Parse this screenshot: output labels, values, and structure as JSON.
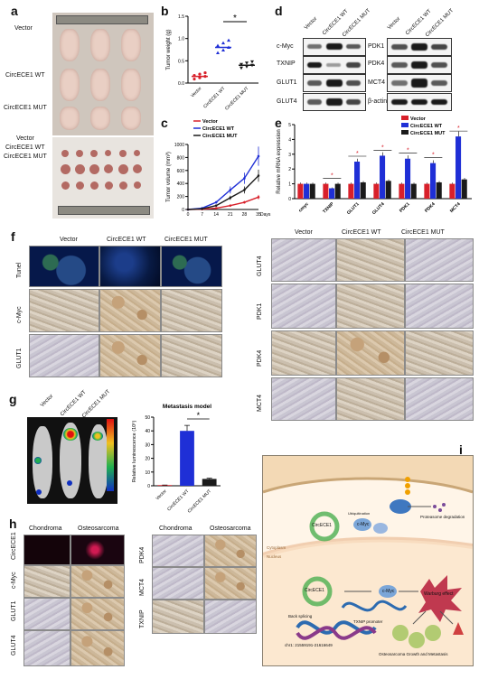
{
  "panels": {
    "a": "a",
    "b": "b",
    "c": "c",
    "d": "d",
    "e": "e",
    "f": "f",
    "g": "g",
    "h": "h",
    "i": "i"
  },
  "a": {
    "groups": [
      "Vector",
      "CircECE1 WT",
      "CircECE1 MUT"
    ]
  },
  "b": {
    "ylabel": "Tumor weight (g)",
    "categories": [
      "Vector",
      "CircECE1 WT",
      "CircECE1 MUT"
    ],
    "sig": "*"
  },
  "c": {
    "ylabel": "Tumor volume (mm³)",
    "xlabel": "Days",
    "legend": [
      "Vector",
      "CircECE1 WT",
      "CircECE1 MUT"
    ]
  },
  "d": {
    "headers": [
      "Vector",
      "CircECE1 WT",
      "CircECE1 MUT"
    ],
    "left_proteins": [
      "c-Myc",
      "TXNIP",
      "GLUT1",
      "GLUT4"
    ],
    "right_proteins": [
      "PDK1",
      "PDK4",
      "MCT4",
      "β-actin"
    ]
  },
  "e": {
    "ylabel": "Relative mRNA expression",
    "legend": [
      "Vector",
      "CircECE1 WT",
      "CircECE1 MUT"
    ],
    "sig": "*"
  },
  "f": {
    "columns": [
      "Vector",
      "CircECE1 WT",
      "CircECE1 MUT"
    ],
    "left_rows": [
      "Tunel",
      "c-Myc",
      "GLUT1"
    ],
    "right_rows": [
      "GLUT4",
      "PDK1",
      "PDK4",
      "MCT4"
    ]
  },
  "g": {
    "groups": [
      "Vector",
      "CircECE1 WT",
      "CircECE1 MUT"
    ],
    "chart_title": "Metastasis model",
    "ylabel": "Relative luminescence (10⁶)",
    "sig": "*"
  },
  "h": {
    "columns": [
      "Chondroma",
      "Osteosarcoma"
    ],
    "left_rows": [
      "CircECE1",
      "c-Myc",
      "GLUT1",
      "GLUT4"
    ],
    "right_rows": [
      "PDK4",
      "MCT4",
      "TXNIP"
    ]
  },
  "i": {
    "circ": "CircECE1",
    "cmyc": "c-Myc",
    "ub": "Ubiquitination",
    "degradation": "Proteasome degradation",
    "cytoplasm": "Cytoplasm",
    "nucleus": "Nucleus",
    "backsplicing": "Back splicing",
    "txnip": "TXNIP promoter",
    "warburg": "Warburg effect",
    "growth": "Osteosarcoma Growth and Metastasis",
    "chr": "chr1: 21559191-21616649"
  },
  "chart_data": [
    {
      "type": "scatter",
      "panel": "b",
      "categories": [
        "Vector",
        "CircECE1 WT",
        "CircECE1 MUT"
      ],
      "values": [
        0.15,
        0.8,
        0.4
      ],
      "ylabel": "Tumor weight (g)",
      "ylim": [
        0,
        1.5
      ],
      "ticks": [
        0.0,
        0.5,
        1.0,
        1.5
      ]
    },
    {
      "type": "line",
      "panel": "c",
      "x": [
        0,
        7,
        14,
        21,
        28,
        35
      ],
      "series": [
        {
          "name": "Vector",
          "values": [
            0,
            5,
            20,
            60,
            110,
            190
          ]
        },
        {
          "name": "CircECE1 WT",
          "values": [
            0,
            20,
            110,
            300,
            480,
            820
          ]
        },
        {
          "name": "CircECE1 MUT",
          "values": [
            0,
            10,
            60,
            180,
            300,
            520
          ]
        }
      ],
      "xlabel": "Days",
      "ylabel": "Tumor volume (mm³)",
      "ylim": [
        0,
        1000
      ],
      "yticks": [
        0,
        200,
        400,
        600,
        800,
        1000
      ],
      "xticks": [
        0,
        7,
        14,
        21,
        28,
        35
      ]
    },
    {
      "type": "bar",
      "panel": "e",
      "categories": [
        "cmyc",
        "TXNIP",
        "GLUT1",
        "GLUT4",
        "PDK1",
        "PDK4",
        "MCT4"
      ],
      "series": [
        {
          "name": "Vector",
          "values": [
            1.0,
            1.0,
            1.0,
            1.0,
            1.0,
            1.0,
            1.0
          ]
        },
        {
          "name": "CircECE1 WT",
          "values": [
            1.0,
            0.7,
            2.5,
            2.9,
            2.7,
            2.4,
            4.2
          ]
        },
        {
          "name": "CircECE1 MUT",
          "values": [
            1.0,
            1.0,
            1.1,
            1.2,
            1.0,
            1.1,
            1.3
          ]
        }
      ],
      "ylabel": "Relative mRNA expression",
      "ylim": [
        0,
        5
      ],
      "yticks": [
        0,
        1,
        2,
        3,
        4,
        5
      ]
    },
    {
      "type": "bar",
      "panel": "g",
      "categories": [
        "Vector",
        "CircECE1 WT",
        "CircECE1 MUT"
      ],
      "values": [
        0.5,
        40,
        5
      ],
      "title": "Metastasis model",
      "ylabel": "Relative luminescence (10⁶)",
      "ylim": [
        0,
        50
      ],
      "yticks": [
        0,
        10,
        20,
        30,
        40,
        50
      ]
    }
  ],
  "colors": {
    "vector": "#d8202a",
    "wt": "#1f2fd6",
    "mut": "#1a1a1a"
  }
}
